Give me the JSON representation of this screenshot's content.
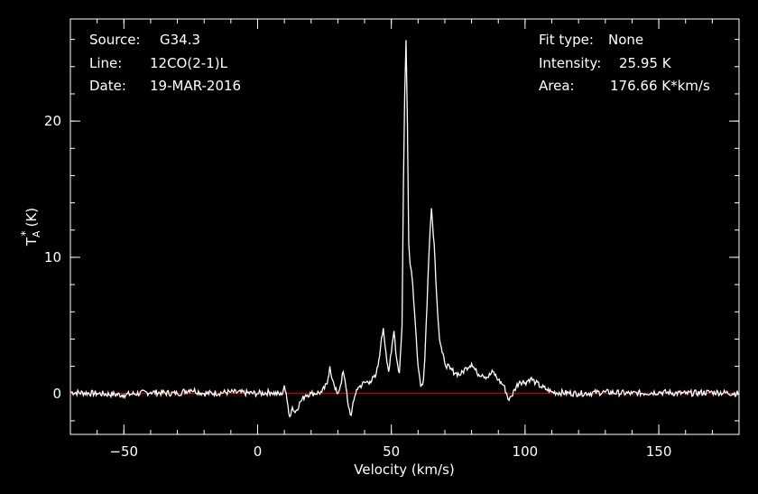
{
  "header": {
    "left": [
      {
        "label": "Source:",
        "value": "G34.3"
      },
      {
        "label": "Line:",
        "value": "12CO(2-1)L"
      },
      {
        "label": "Date:",
        "value": "19-MAR-2016"
      }
    ],
    "right": [
      {
        "label": "Fit type:",
        "value": "None"
      },
      {
        "label": "Intensity:",
        "value": "25.95 K"
      },
      {
        "label": "Area:",
        "value": "176.66 K*km/s"
      }
    ]
  },
  "colors": {
    "background": "#000000",
    "spectrum": "#ffffff",
    "baseline": "#ff0000"
  },
  "chart_data": {
    "type": "line",
    "xlabel": "Velocity (km/s)",
    "ylabel_main": "T",
    "ylabel_sup": "*",
    "ylabel_sub": "A",
    "ylabel_unit": "(K)",
    "xlim": [
      -70,
      180
    ],
    "ylim": [
      -3,
      27.5
    ],
    "xticks_major": [
      -50,
      0,
      50,
      100,
      150
    ],
    "xticks_minor_step": 10,
    "yticks_major": [
      0,
      10,
      20
    ],
    "yticks_minor_step": 2,
    "baseline": 0,
    "series": [
      {
        "points": [
          [
            -70,
            0.1
          ],
          [
            -60,
            0.0
          ],
          [
            -50,
            -0.1
          ],
          [
            -40,
            0.1
          ],
          [
            -30,
            0.0
          ],
          [
            -25,
            0.3
          ],
          [
            -20,
            0.0
          ],
          [
            -10,
            0.1
          ],
          [
            0,
            0.0
          ],
          [
            5,
            0.1
          ],
          [
            9,
            -0.1
          ],
          [
            10,
            0.6
          ],
          [
            11,
            -0.5
          ],
          [
            12,
            -1.7
          ],
          [
            13,
            -1.0
          ],
          [
            14,
            -1.4
          ],
          [
            16,
            -0.6
          ],
          [
            18,
            -0.1
          ],
          [
            20,
            0.0
          ],
          [
            24,
            0.1
          ],
          [
            26,
            0.7
          ],
          [
            27,
            2.0
          ],
          [
            28,
            1.0
          ],
          [
            29,
            0.3
          ],
          [
            30,
            0.0
          ],
          [
            31,
            0.6
          ],
          [
            32,
            1.6
          ],
          [
            33,
            0.5
          ],
          [
            34,
            -1.0
          ],
          [
            35,
            -1.6
          ],
          [
            36,
            -0.5
          ],
          [
            37,
            0.3
          ],
          [
            38,
            0.5
          ],
          [
            40,
            0.8
          ],
          [
            42,
            0.9
          ],
          [
            44,
            1.2
          ],
          [
            45,
            2.0
          ],
          [
            46,
            3.5
          ],
          [
            47,
            4.8
          ],
          [
            48,
            3.0
          ],
          [
            49,
            1.6
          ],
          [
            50,
            3.0
          ],
          [
            51,
            4.6
          ],
          [
            52,
            2.5
          ],
          [
            53,
            1.5
          ],
          [
            54,
            5.0
          ],
          [
            54.5,
            15.0
          ],
          [
            55,
            22.0
          ],
          [
            55.5,
            25.95
          ],
          [
            56,
            20.0
          ],
          [
            56.5,
            11.0
          ],
          [
            57,
            9.5
          ],
          [
            57.5,
            9.0
          ],
          [
            58,
            8.0
          ],
          [
            59,
            5.0
          ],
          [
            60,
            2.0
          ],
          [
            61,
            0.5
          ],
          [
            62,
            1.0
          ],
          [
            62.5,
            2.5
          ],
          [
            63,
            5.0
          ],
          [
            64,
            10.0
          ],
          [
            64.5,
            12.0
          ],
          [
            65,
            13.6
          ],
          [
            66,
            11.0
          ],
          [
            67,
            7.0
          ],
          [
            68,
            4.0
          ],
          [
            69,
            3.0
          ],
          [
            70,
            2.2
          ],
          [
            72,
            1.8
          ],
          [
            74,
            1.5
          ],
          [
            76,
            1.4
          ],
          [
            78,
            1.9
          ],
          [
            80,
            2.2
          ],
          [
            82,
            1.5
          ],
          [
            84,
            1.4
          ],
          [
            86,
            1.2
          ],
          [
            88,
            1.6
          ],
          [
            90,
            1.0
          ],
          [
            92,
            0.6
          ],
          [
            94,
            -0.5
          ],
          [
            95,
            -0.2
          ],
          [
            96,
            0.3
          ],
          [
            98,
            0.9
          ],
          [
            100,
            0.8
          ],
          [
            102,
            1.1
          ],
          [
            104,
            0.8
          ],
          [
            106,
            0.5
          ],
          [
            108,
            0.3
          ],
          [
            110,
            0.1
          ],
          [
            120,
            0.0
          ],
          [
            130,
            0.1
          ],
          [
            140,
            0.0
          ],
          [
            150,
            0.1
          ],
          [
            160,
            0.0
          ],
          [
            170,
            0.1
          ],
          [
            180,
            0.0
          ]
        ]
      }
    ]
  }
}
